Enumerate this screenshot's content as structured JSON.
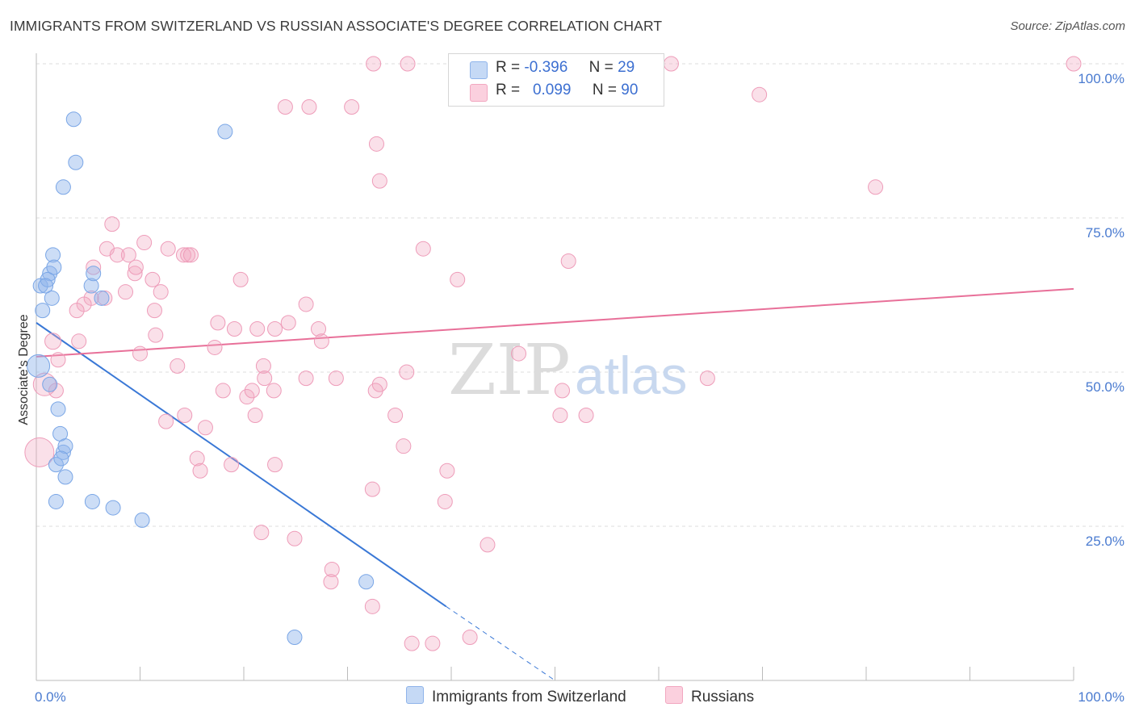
{
  "title": "IMMIGRANTS FROM SWITZERLAND VS RUSSIAN ASSOCIATE'S DEGREE CORRELATION CHART",
  "source": "Source: ZipAtlas.com",
  "legend": {
    "row1": {
      "r_label": "R =",
      "r_value": "-0.396",
      "n_label": "N =",
      "n_value": "29"
    },
    "row2": {
      "r_label": "R =",
      "r_value": "0.099",
      "n_label": "N =",
      "n_value": "90"
    }
  },
  "bottom_legend": [
    "Immigrants from Switzerland",
    "Russians"
  ],
  "watermark": {
    "zip": "ZIP",
    "atlas": "atlas"
  },
  "chart_data": {
    "type": "scatter",
    "ylabel": "Associate's Degree",
    "x_tick_labels": [
      "0.0%",
      "100.0%"
    ],
    "y_tick_labels": [
      "100.0%",
      "75.0%",
      "50.0%",
      "25.0%"
    ],
    "xlim": [
      0,
      100
    ],
    "ylim": [
      0,
      100
    ],
    "y_ticks": [
      100,
      75,
      50,
      25
    ],
    "colors": {
      "switzerland": "#8fb4ea",
      "russians": "#f2a7c0",
      "switzerland_line": "#3a78d6",
      "russians_line": "#e87099"
    },
    "series": [
      {
        "name": "Immigrants from Switzerland",
        "trend": {
          "x0": 0,
          "y0": 58,
          "x1": 39.5,
          "y1": 12,
          "dash_to_x": 50,
          "dash_to_y": 0
        },
        "points": [
          [
            0.4,
            64,
            9
          ],
          [
            0.6,
            60,
            9
          ],
          [
            1.3,
            66,
            9
          ],
          [
            1.1,
            65,
            9
          ],
          [
            0.9,
            64,
            9
          ],
          [
            1.5,
            62,
            9
          ],
          [
            1.6,
            69,
            9
          ],
          [
            1.7,
            67,
            9
          ],
          [
            3.6,
            91,
            9
          ],
          [
            3.8,
            84,
            9
          ],
          [
            2.6,
            80,
            9
          ],
          [
            18.2,
            89,
            9
          ],
          [
            1.3,
            48,
            9
          ],
          [
            2.1,
            44,
            9
          ],
          [
            2.3,
            40,
            9
          ],
          [
            2.6,
            37,
            9
          ],
          [
            2.8,
            38,
            9
          ],
          [
            1.9,
            35,
            9
          ],
          [
            2.4,
            36,
            9
          ],
          [
            2.8,
            33,
            9
          ],
          [
            1.9,
            29,
            9
          ],
          [
            5.3,
            64,
            9
          ],
          [
            5.5,
            66,
            9
          ],
          [
            6.3,
            62,
            9
          ],
          [
            5.4,
            29,
            9
          ],
          [
            7.4,
            28,
            9
          ],
          [
            10.2,
            26,
            9
          ],
          [
            31.8,
            16,
            9
          ],
          [
            24.9,
            7,
            9
          ],
          [
            0.2,
            51,
            14
          ]
        ]
      },
      {
        "name": "Russians",
        "trend": {
          "x0": 0,
          "y0": 52.5,
          "x1": 100,
          "y1": 63.5
        },
        "points": [
          [
            32.5,
            100,
            9
          ],
          [
            59.4,
            100,
            9
          ],
          [
            61.2,
            100,
            9
          ],
          [
            100,
            100,
            9
          ],
          [
            24.0,
            93,
            9
          ],
          [
            26.3,
            93,
            9
          ],
          [
            30.4,
            93,
            9
          ],
          [
            32.8,
            87,
            9
          ],
          [
            33.1,
            81,
            9
          ],
          [
            69.7,
            95,
            9
          ],
          [
            80.9,
            80,
            9
          ],
          [
            7.3,
            74,
            9
          ],
          [
            8.9,
            69,
            9
          ],
          [
            10.4,
            71,
            9
          ],
          [
            12.7,
            70,
            9
          ],
          [
            14.2,
            69,
            9
          ],
          [
            14.6,
            69,
            9
          ],
          [
            11.2,
            65,
            9
          ],
          [
            8.6,
            63,
            9
          ],
          [
            9.5,
            66,
            9
          ],
          [
            12.0,
            63,
            9
          ],
          [
            6.6,
            62,
            9
          ],
          [
            5.3,
            62,
            9
          ],
          [
            4.6,
            61,
            9
          ],
          [
            3.9,
            60,
            9
          ],
          [
            5.5,
            67,
            9
          ],
          [
            6.8,
            70,
            9
          ],
          [
            9.6,
            67,
            9
          ],
          [
            7.8,
            69,
            9
          ],
          [
            14.9,
            69,
            9
          ],
          [
            19.7,
            65,
            9
          ],
          [
            26.0,
            61,
            9
          ],
          [
            37.3,
            70,
            9
          ],
          [
            40.6,
            65,
            9
          ],
          [
            51.3,
            68,
            9
          ],
          [
            17.5,
            58,
            9
          ],
          [
            19.1,
            57,
            9
          ],
          [
            23.0,
            57,
            9
          ],
          [
            24.3,
            58,
            9
          ],
          [
            27.2,
            57,
            9
          ],
          [
            11.4,
            60,
            9
          ],
          [
            11.5,
            56,
            9
          ],
          [
            21.3,
            57,
            9
          ],
          [
            27.5,
            55,
            9
          ],
          [
            17.2,
            54,
            9
          ],
          [
            4.1,
            55,
            9
          ],
          [
            2.1,
            52,
            9
          ],
          [
            1.9,
            47,
            9
          ],
          [
            10.0,
            53,
            9
          ],
          [
            13.6,
            51,
            9
          ],
          [
            21.9,
            51,
            9
          ],
          [
            22.0,
            49,
            9
          ],
          [
            26.0,
            49,
            9
          ],
          [
            28.9,
            49,
            9
          ],
          [
            33.1,
            48,
            9
          ],
          [
            35.7,
            50,
            9
          ],
          [
            18.0,
            47,
            9
          ],
          [
            20.3,
            46,
            9
          ],
          [
            20.8,
            47,
            9
          ],
          [
            22.9,
            47,
            9
          ],
          [
            21.1,
            43,
            9
          ],
          [
            32.7,
            47,
            9
          ],
          [
            34.6,
            43,
            9
          ],
          [
            46.5,
            53,
            9
          ],
          [
            50.7,
            47,
            9
          ],
          [
            50.5,
            43,
            9
          ],
          [
            53.0,
            43,
            9
          ],
          [
            64.7,
            49,
            9
          ],
          [
            14.3,
            43,
            9
          ],
          [
            16.3,
            41,
            9
          ],
          [
            12.5,
            42,
            9
          ],
          [
            15.5,
            36,
            9
          ],
          [
            15.8,
            34,
            9
          ],
          [
            18.8,
            35,
            9
          ],
          [
            23.0,
            35,
            9
          ],
          [
            35.4,
            38,
            9
          ],
          [
            39.6,
            34,
            9
          ],
          [
            32.4,
            31,
            9
          ],
          [
            39.4,
            29,
            9
          ],
          [
            21.7,
            24,
            9
          ],
          [
            24.9,
            23,
            9
          ],
          [
            43.5,
            22,
            9
          ],
          [
            28.5,
            18,
            9
          ],
          [
            28.4,
            16,
            9
          ],
          [
            32.4,
            12,
            9
          ],
          [
            36.2,
            6,
            9
          ],
          [
            38.2,
            6,
            9
          ],
          [
            41.8,
            7,
            9
          ],
          [
            35.8,
            100,
            9
          ],
          [
            0.3,
            37,
            18
          ],
          [
            0.8,
            48,
            14
          ],
          [
            1.6,
            55,
            10
          ]
        ]
      }
    ]
  }
}
